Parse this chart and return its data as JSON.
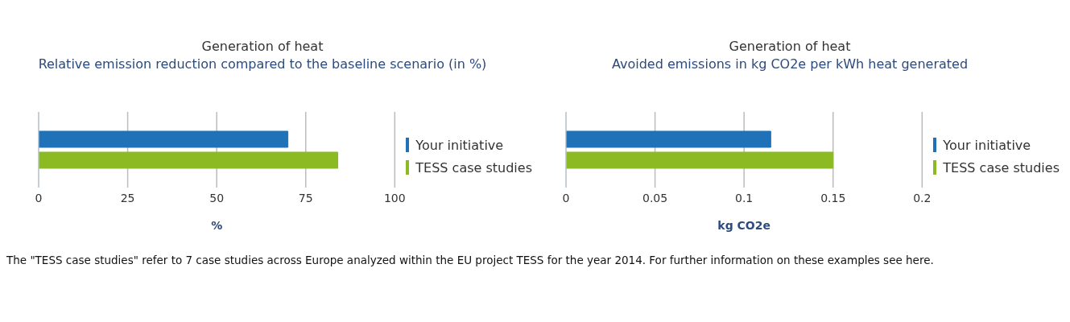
{
  "chart_data": [
    {
      "type": "bar",
      "orientation": "horizontal",
      "title": "Generation of heat",
      "subtitle": "Relative emission reduction compared to the baseline scenario (in %)",
      "xlabel": "%",
      "categories": [
        null
      ],
      "series": [
        {
          "name": "Your initiative",
          "color": "#1f72b8",
          "values": [
            70
          ]
        },
        {
          "name": "TESS case studies",
          "color": "#8bba22",
          "values": [
            84
          ]
        }
      ],
      "xlim": [
        0,
        100
      ],
      "xticks": [
        0,
        25,
        50,
        75,
        100
      ],
      "grid": "x",
      "legend": "right",
      "annotations": [
        "The \"TESS case studies\" refer to 7 case studies across Europe analyzed within the EU project TESS for the year 2014. For further information on these examples see here."
      ]
    },
    {
      "type": "bar",
      "orientation": "horizontal",
      "title": "Generation of heat",
      "subtitle": "Avoided emissions in kg CO2e per kWh heat generated",
      "xlabel": "kg CO2e",
      "categories": [
        null
      ],
      "series": [
        {
          "name": "Your initiative",
          "color": "#1f72b8",
          "values": [
            0.115
          ]
        },
        {
          "name": "TESS case studies",
          "color": "#8bba22",
          "values": [
            0.15
          ]
        }
      ],
      "xlim": [
        0,
        0.2
      ],
      "xticks": [
        0,
        0.05,
        0.1,
        0.15,
        0.2
      ],
      "grid": "x",
      "legend": "right"
    }
  ]
}
